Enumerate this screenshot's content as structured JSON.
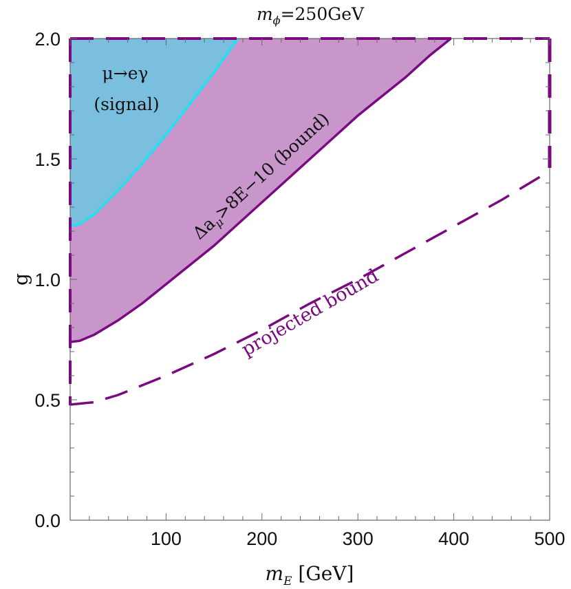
{
  "chart_data": {
    "type": "area",
    "title": {
      "prefix": "m",
      "sub": "ϕ",
      "suffix": "=250GeV"
    },
    "xlabel": {
      "prefix": "m",
      "sub": "E",
      "suffix": " [GeV]"
    },
    "ylabel": "g",
    "xlim": [
      0,
      500
    ],
    "ylim": [
      0,
      2
    ],
    "xticks": [
      100,
      200,
      300,
      400,
      500
    ],
    "xtick_labels": [
      "100",
      "200",
      "300",
      "400",
      "500"
    ],
    "yticks": [
      0,
      0.5,
      1,
      1.5,
      2
    ],
    "ytick_labels": [
      "0.0",
      "0.5",
      "1.0",
      "1.5",
      "2.0"
    ],
    "grid": false,
    "colors": {
      "signal_fill": "#7bbfdf",
      "signal_line": "#22e0f0",
      "bound_fill": "#c896cb",
      "bound_line": "#7a0a80",
      "projected_line": "#7a0a80",
      "label": "#7a0a80"
    },
    "series": [
      {
        "name": "Δaμ>8E−10 (bound)",
        "style": "filled-solid",
        "x": [
          0,
          10,
          25,
          50,
          75,
          100,
          125,
          150,
          175,
          200,
          225,
          250,
          275,
          300,
          325,
          350,
          375,
          397
        ],
        "y": [
          0.74,
          0.745,
          0.77,
          0.83,
          0.9,
          0.98,
          1.06,
          1.14,
          1.23,
          1.32,
          1.41,
          1.5,
          1.59,
          1.68,
          1.76,
          1.84,
          1.93,
          2.0
        ]
      },
      {
        "name": "μ→eγ (signal)",
        "style": "filled-solid",
        "x": [
          0,
          10,
          25,
          50,
          75,
          100,
          125,
          150,
          175
        ],
        "y": [
          1.22,
          1.23,
          1.27,
          1.37,
          1.48,
          1.6,
          1.73,
          1.86,
          2.0
        ]
      },
      {
        "name": "projected bound",
        "style": "dashed",
        "x": [
          0,
          25,
          50,
          100,
          150,
          200,
          250,
          300,
          350,
          400,
          450,
          500
        ],
        "y": [
          0.48,
          0.49,
          0.52,
          0.6,
          0.69,
          0.79,
          0.9,
          1.0,
          1.11,
          1.22,
          1.33,
          1.45
        ]
      }
    ],
    "annotations": {
      "signal_line1": "μ→eγ",
      "signal_line2": "(signal)",
      "bound": "Δaμ>8E−10 (bound)",
      "bound_main": "Δa",
      "bound_sub": "μ",
      "bound_rest": ">8E−10 (bound)",
      "projected": "projected bound"
    }
  }
}
